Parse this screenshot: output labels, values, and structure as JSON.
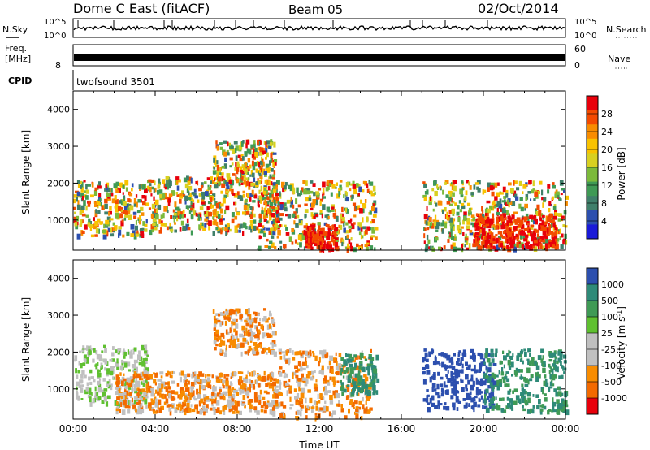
{
  "header": {
    "title": "Dome C East (fitACF)",
    "beam": "Beam 05",
    "date": "02/Oct/2014"
  },
  "noise_panel": {
    "left_label": "N.Sky",
    "right_label": "N.Search",
    "left_ticks": [
      "10^5",
      "10^0"
    ],
    "right_ticks": [
      "10^5",
      "10^0"
    ]
  },
  "freq_panel": {
    "left_label_1": "Freq.",
    "left_label_2": "[MHz]",
    "left_tick": "8",
    "right_label": "Nave",
    "right_ticks": [
      "60",
      "0"
    ]
  },
  "cpid_panel": {
    "label": "CPID",
    "value": "twofsound 3501"
  },
  "chart_data": [
    {
      "type": "heatmap",
      "title": "",
      "parameter": "Power",
      "ylabel": "Slant Range [km]",
      "xlabel": "",
      "xlim": [
        "00:00",
        "24:00"
      ],
      "ylim": [
        180,
        4500
      ],
      "y_ticks": [
        1000,
        2000,
        3000,
        4000
      ],
      "colorbar": {
        "label": "Power [dB]",
        "ticks": [
          "28",
          "24",
          "20",
          "16",
          "12",
          "8",
          "4"
        ],
        "colors": [
          "#e8000b",
          "#f34a00",
          "#f88c00",
          "#f8c200",
          "#d8d020",
          "#7cba3a",
          "#3f9a55",
          "#3f7f6a",
          "#2c4fae",
          "#1a1ad8"
        ]
      },
      "echo_regions": [
        {
          "t_start": 0.0,
          "t_end": 3.6,
          "range_min": 600,
          "range_max": 2100,
          "level": "12-24 dB"
        },
        {
          "t_start": 3.6,
          "t_end": 10.0,
          "range_min": 700,
          "range_max": 2200,
          "level": "12-28 dB"
        },
        {
          "t_start": 6.8,
          "t_end": 9.8,
          "range_min": 2000,
          "range_max": 3200,
          "level": "8-20 dB"
        },
        {
          "t_start": 9.0,
          "t_end": 14.7,
          "range_min": 250,
          "range_max": 2100,
          "level": "16-28 dB"
        },
        {
          "t_start": 11.2,
          "t_end": 12.8,
          "range_min": 250,
          "range_max": 900,
          "level": ">28 dB"
        },
        {
          "t_start": 17.0,
          "t_end": 24.0,
          "range_min": 250,
          "range_max": 2100,
          "level": "12-28 dB"
        },
        {
          "t_start": 19.5,
          "t_end": 23.5,
          "range_min": 300,
          "range_max": 1200,
          "level": ">24 dB"
        }
      ]
    },
    {
      "type": "heatmap",
      "title": "",
      "parameter": "Velocity",
      "ylabel": "Slant Range [km]",
      "xlabel": "Time UT",
      "xlim": [
        "00:00",
        "24:00"
      ],
      "ylim": [
        180,
        4500
      ],
      "x_ticks": [
        "00:00",
        "04:00",
        "08:00",
        "12:00",
        "16:00",
        "20:00",
        "00:00"
      ],
      "y_ticks": [
        1000,
        2000,
        3000,
        4000
      ],
      "colorbar": {
        "label": "Velocity [m s-1]",
        "ticks": [
          "1000",
          "500",
          "100",
          "25",
          "-25",
          "-100",
          "-500",
          "-1000"
        ],
        "colors": [
          "#2c4fae",
          "#2e8a78",
          "#3f9a55",
          "#5fc030",
          "#bfbfbf",
          "#c0c0c0",
          "#f88c00",
          "#f36a00",
          "#e8000b"
        ]
      },
      "echo_regions": [
        {
          "t_start": 0.0,
          "t_end": 3.6,
          "range_min": 600,
          "range_max": 2200,
          "level": "-25 to 100 m/s"
        },
        {
          "t_start": 2.0,
          "t_end": 10.0,
          "range_min": 400,
          "range_max": 1500,
          "level": "-100 to -500 m/s"
        },
        {
          "t_start": 6.8,
          "t_end": 9.8,
          "range_min": 2000,
          "range_max": 3200,
          "level": "-100 to -500 m/s"
        },
        {
          "t_start": 10.0,
          "t_end": 14.5,
          "range_min": 250,
          "range_max": 2100,
          "level": "-100 to -500 m/s"
        },
        {
          "t_start": 13.0,
          "t_end": 14.8,
          "range_min": 900,
          "range_max": 2000,
          "level": "100 to 500 m/s"
        },
        {
          "t_start": 17.0,
          "t_end": 20.5,
          "range_min": 500,
          "range_max": 2100,
          "level": "500 to 1000 m/s"
        },
        {
          "t_start": 20.0,
          "t_end": 24.0,
          "range_min": 400,
          "range_max": 2100,
          "level": "100 to 500 m/s"
        }
      ]
    }
  ]
}
